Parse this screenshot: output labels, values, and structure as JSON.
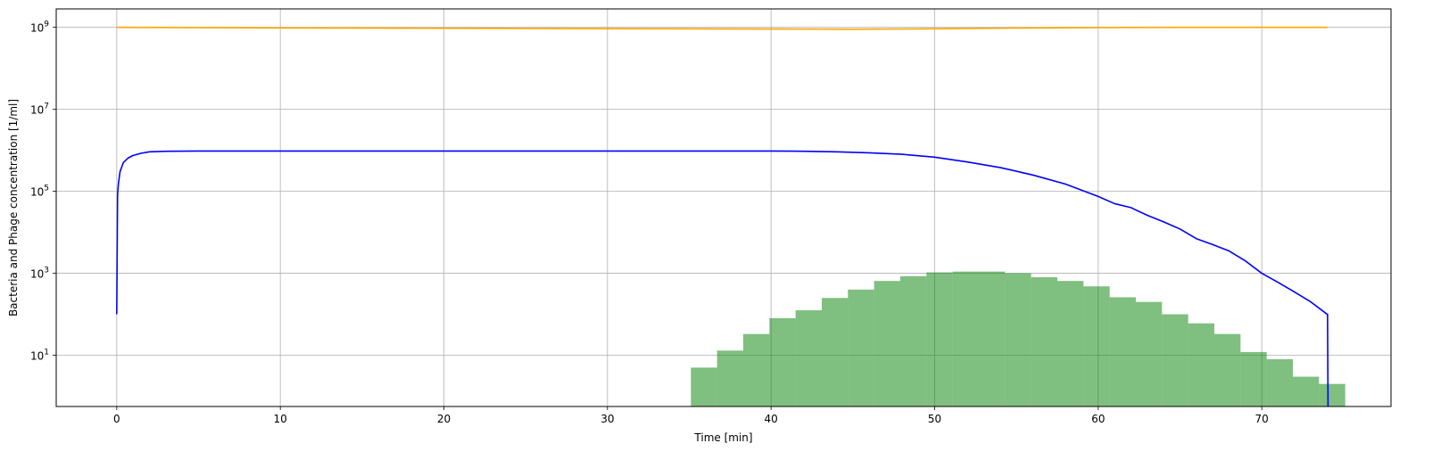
{
  "chart_data": {
    "type": "line",
    "title": "",
    "xlabel": "Time [min]",
    "ylabel": "Bacteria and Phage concentration [1/ml]",
    "xlim": [
      -3.7,
      77.9
    ],
    "ylim_log10": [
      -0.25,
      9.45
    ],
    "yscale": "log",
    "grid": true,
    "legend": "none",
    "x_ticks": [
      0,
      10,
      20,
      30,
      40,
      50,
      60,
      70
    ],
    "y_ticks": [
      {
        "base": "10",
        "exp": "1",
        "value": 10
      },
      {
        "base": "10",
        "exp": "3",
        "value": 1000
      },
      {
        "base": "10",
        "exp": "5",
        "value": 100000
      },
      {
        "base": "10",
        "exp": "7",
        "value": 10000000
      },
      {
        "base": "10",
        "exp": "9",
        "value": 1000000000
      }
    ],
    "colors": {
      "bacteria": "#ffa500",
      "phage": "#0000ff",
      "histogram": "#008000",
      "histogram_opacity": 0.5,
      "grid": "#b0b0b0"
    },
    "series": [
      {
        "type": "line",
        "color": "#ffa500",
        "x": [
          0,
          10,
          20,
          30,
          40,
          45,
          50,
          55,
          60,
          65,
          70,
          74
        ],
        "y": [
          1000000000.0,
          970000000.0,
          950000000.0,
          930000000.0,
          910000000.0,
          900000000.0,
          920000000.0,
          960000000.0,
          990000000.0,
          1000000000.0,
          1000000000.0,
          1000000000.0
        ]
      },
      {
        "type": "line",
        "color": "#0000ff",
        "x": [
          0,
          0.05,
          0.1,
          0.2,
          0.4,
          0.7,
          1.0,
          1.5,
          2,
          3,
          5,
          10,
          20,
          30,
          40,
          42,
          44,
          46,
          48,
          50,
          52,
          54,
          56,
          58,
          60,
          61,
          62,
          63,
          64,
          65,
          66,
          67,
          68,
          69,
          70,
          71,
          72,
          73,
          74,
          74.02,
          74.05
        ],
        "y": [
          100,
          80000,
          150000,
          300000,
          500000,
          650000,
          750000,
          850000,
          920000,
          950000,
          960000,
          960000,
          960000,
          960000,
          960000,
          950000,
          920000,
          870000,
          800000,
          680000,
          520000,
          380000,
          250000,
          150000,
          75000,
          50000,
          40000,
          26000,
          18000,
          12000,
          7000,
          5000,
          3500,
          2000,
          1000,
          600,
          350,
          200,
          100,
          100,
          0.1
        ]
      },
      {
        "type": "histogram",
        "color": "#008000",
        "bin_width": 1.6,
        "bin_starts": [
          35.1,
          36.7,
          38.3,
          39.9,
          41.5,
          43.1,
          44.7,
          46.3,
          47.9,
          49.5,
          51.1,
          52.7,
          54.3,
          55.9,
          57.5,
          59.1,
          60.7,
          62.3,
          63.9,
          65.5,
          67.1,
          68.7,
          70.3,
          71.9,
          73.5
        ],
        "values": [
          5,
          13,
          33,
          80,
          125,
          250,
          400,
          650,
          850,
          1050,
          1100,
          1100,
          1000,
          800,
          650,
          480,
          260,
          200,
          100,
          60,
          33,
          12,
          8,
          3,
          2
        ]
      }
    ]
  }
}
